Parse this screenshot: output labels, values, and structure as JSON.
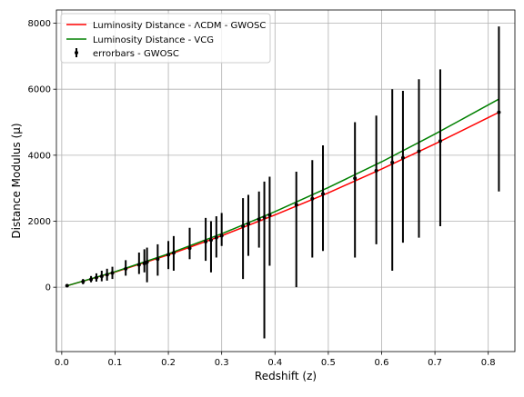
{
  "chart_data": {
    "type": "line",
    "title": "",
    "xlabel": "Redshift (z)",
    "ylabel": "Distance Modulus (μ)",
    "xlim": [
      -0.01,
      0.85
    ],
    "ylim": [
      -1950,
      8400
    ],
    "x_ticks": [
      0.0,
      0.1,
      0.2,
      0.3,
      0.4,
      0.5,
      0.6,
      0.7,
      0.8
    ],
    "x_tick_labels": [
      "0.0",
      "0.1",
      "0.2",
      "0.3",
      "0.4",
      "0.5",
      "0.6",
      "0.7",
      "0.8"
    ],
    "y_ticks": [
      0,
      2000,
      4000,
      6000,
      8000
    ],
    "y_tick_labels": [
      "0",
      "2000",
      "4000",
      "6000",
      "8000"
    ],
    "grid": true,
    "legend_position": "top-left",
    "series": [
      {
        "name": "Luminosity Distance - ΛCDM - GWOSC",
        "kind": "line",
        "color": "#ff0000",
        "x": [
          0.01,
          0.1,
          0.2,
          0.3,
          0.4,
          0.5,
          0.6,
          0.7,
          0.82
        ],
        "y": [
          44,
          460,
          980,
          1560,
          2190,
          2860,
          3580,
          4340,
          5300
        ]
      },
      {
        "name": "Luminosity Distance - VCG",
        "kind": "line",
        "color": "#008000",
        "x": [
          0.01,
          0.1,
          0.2,
          0.3,
          0.4,
          0.5,
          0.6,
          0.7,
          0.82
        ],
        "y": [
          44,
          470,
          1010,
          1620,
          2290,
          3020,
          3800,
          4640,
          5700
        ]
      },
      {
        "name": "errorbars - GWOSC",
        "kind": "errorbar",
        "color": "#000000",
        "points": [
          {
            "x": 0.01,
            "y": 44,
            "lo": 20,
            "hi": 70
          },
          {
            "x": 0.04,
            "y": 170,
            "lo": 90,
            "hi": 250
          },
          {
            "x": 0.055,
            "y": 240,
            "lo": 150,
            "hi": 340
          },
          {
            "x": 0.065,
            "y": 290,
            "lo": 170,
            "hi": 420
          },
          {
            "x": 0.075,
            "y": 330,
            "lo": 180,
            "hi": 500
          },
          {
            "x": 0.085,
            "y": 380,
            "lo": 200,
            "hi": 560
          },
          {
            "x": 0.095,
            "y": 430,
            "lo": 250,
            "hi": 620
          },
          {
            "x": 0.12,
            "y": 560,
            "lo": 350,
            "hi": 820
          },
          {
            "x": 0.145,
            "y": 680,
            "lo": 400,
            "hi": 1050
          },
          {
            "x": 0.155,
            "y": 720,
            "lo": 450,
            "hi": 1150
          },
          {
            "x": 0.16,
            "y": 760,
            "lo": 150,
            "hi": 1200
          },
          {
            "x": 0.18,
            "y": 850,
            "lo": 350,
            "hi": 1300
          },
          {
            "x": 0.2,
            "y": 980,
            "lo": 550,
            "hi": 1400
          },
          {
            "x": 0.21,
            "y": 1040,
            "lo": 500,
            "hi": 1550
          },
          {
            "x": 0.24,
            "y": 1180,
            "lo": 850,
            "hi": 1800
          },
          {
            "x": 0.27,
            "y": 1380,
            "lo": 800,
            "hi": 2100
          },
          {
            "x": 0.28,
            "y": 1430,
            "lo": 450,
            "hi": 2000
          },
          {
            "x": 0.29,
            "y": 1500,
            "lo": 900,
            "hi": 2150
          },
          {
            "x": 0.3,
            "y": 1560,
            "lo": 1250,
            "hi": 2250
          },
          {
            "x": 0.34,
            "y": 1850,
            "lo": 250,
            "hi": 2700
          },
          {
            "x": 0.35,
            "y": 1920,
            "lo": 950,
            "hi": 2800
          },
          {
            "x": 0.37,
            "y": 2060,
            "lo": 1200,
            "hi": 2900
          },
          {
            "x": 0.38,
            "y": 2120,
            "lo": -1550,
            "hi": 3200
          },
          {
            "x": 0.39,
            "y": 2190,
            "lo": 650,
            "hi": 3350
          },
          {
            "x": 0.44,
            "y": 2500,
            "lo": 0,
            "hi": 3500
          },
          {
            "x": 0.47,
            "y": 2680,
            "lo": 900,
            "hi": 3850
          },
          {
            "x": 0.49,
            "y": 2830,
            "lo": 1100,
            "hi": 4300
          },
          {
            "x": 0.55,
            "y": 3300,
            "lo": 900,
            "hi": 5000
          },
          {
            "x": 0.59,
            "y": 3530,
            "lo": 1300,
            "hi": 5200
          },
          {
            "x": 0.62,
            "y": 3780,
            "lo": 500,
            "hi": 6000
          },
          {
            "x": 0.64,
            "y": 3920,
            "lo": 1350,
            "hi": 5950
          },
          {
            "x": 0.67,
            "y": 4120,
            "lo": 1500,
            "hi": 6300
          },
          {
            "x": 0.71,
            "y": 4430,
            "lo": 1850,
            "hi": 6600
          },
          {
            "x": 0.82,
            "y": 5300,
            "lo": 2900,
            "hi": 7900
          }
        ]
      }
    ]
  }
}
